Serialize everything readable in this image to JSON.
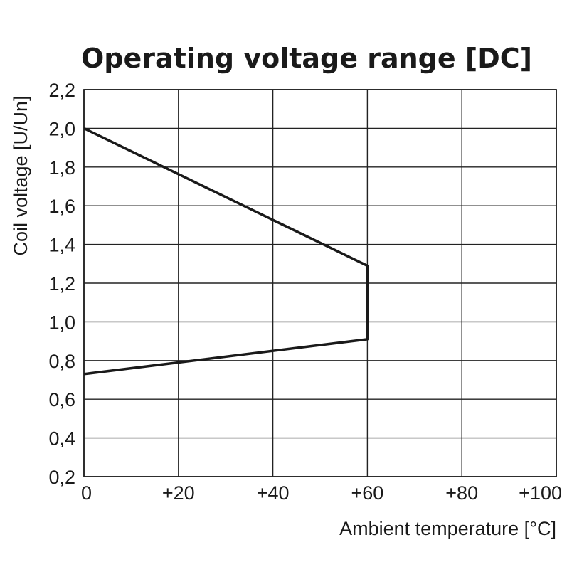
{
  "chart_data": {
    "type": "line",
    "title": "Operating voltage range [DC]",
    "xlabel": "Ambient temperature [°C]",
    "ylabel": "Coil voltage [U/Un]",
    "xlim": [
      0,
      100
    ],
    "ylim": [
      0.2,
      2.2
    ],
    "x_ticks": [
      0,
      20,
      40,
      60,
      80,
      100
    ],
    "x_tick_labels": [
      "0",
      "+20",
      "+40",
      "+60",
      "+80",
      "+100"
    ],
    "y_ticks": [
      0.2,
      0.4,
      0.6,
      0.8,
      1.0,
      1.2,
      1.4,
      1.6,
      1.8,
      2.0,
      2.2
    ],
    "y_tick_labels": [
      "0,2",
      "0,4",
      "0,6",
      "0,8",
      "1,0",
      "1,2",
      "1,4",
      "1,6",
      "1,8",
      "2,0",
      "2,2"
    ],
    "grid": true,
    "series": [
      {
        "x": [
          0,
          60,
          60,
          0
        ],
        "y": [
          2.0,
          1.29,
          0.91,
          0.73
        ],
        "color": "#1a1a1a"
      }
    ]
  }
}
